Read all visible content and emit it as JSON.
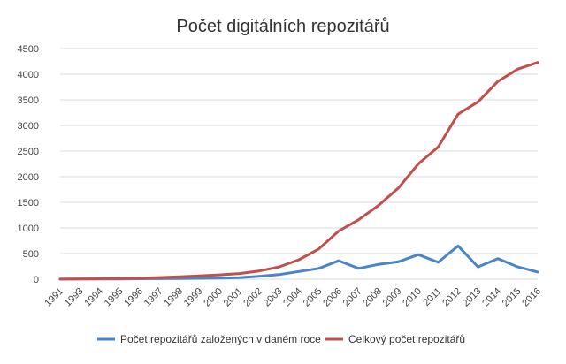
{
  "chart_data": {
    "type": "line",
    "title": "Počet digitálních repozitářů",
    "xlabel": "",
    "ylabel": "",
    "x": [
      "1991",
      "1993",
      "1994",
      "1995",
      "1996",
      "1997",
      "1998",
      "1999",
      "2000",
      "2001",
      "2002",
      "2003",
      "2004",
      "2005",
      "2006",
      "2007",
      "2008",
      "2009",
      "2010",
      "2011",
      "2012",
      "2013",
      "2014",
      "2015",
      "2016"
    ],
    "ylim": [
      0,
      4500
    ],
    "yticks": [
      "0",
      "500",
      "1000",
      "1500",
      "2000",
      "2500",
      "3000",
      "3500",
      "4000",
      "4500"
    ],
    "grid": true,
    "legend_position": "bottom",
    "series": [
      {
        "name": "Počet repozitářů založených v daném roce",
        "color": "#4a86c5",
        "values": [
          2,
          3,
          4,
          6,
          8,
          10,
          13,
          17,
          22,
          30,
          55,
          90,
          150,
          210,
          360,
          210,
          290,
          340,
          480,
          330,
          650,
          240,
          400,
          240,
          140
        ]
      },
      {
        "name": "Celkový počet repozitářů",
        "color": "#c0504d",
        "values": [
          2,
          5,
          9,
          15,
          23,
          33,
          46,
          63,
          85,
          110,
          160,
          240,
          380,
          590,
          940,
          1160,
          1440,
          1780,
          2250,
          2580,
          3220,
          3460,
          3860,
          4100,
          4230
        ]
      }
    ]
  }
}
